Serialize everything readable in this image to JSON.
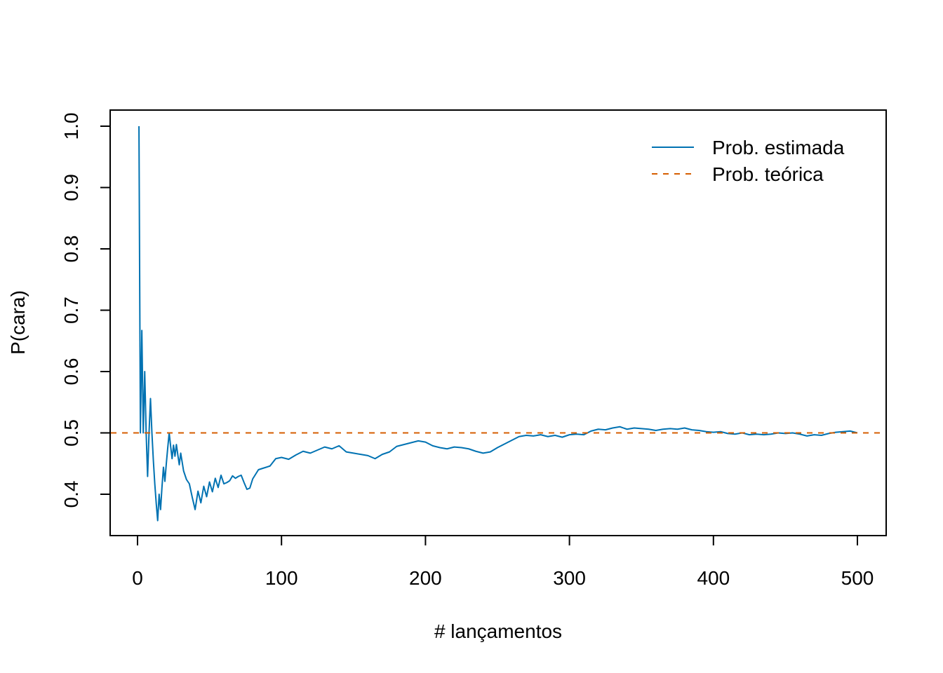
{
  "chart_data": {
    "type": "line",
    "xlabel": "# lançamentos",
    "ylabel": "P(cara)",
    "xlim": [
      0,
      500
    ],
    "ylim": [
      0.35,
      1.0
    ],
    "xticks": [
      "0",
      "100",
      "200",
      "300",
      "400",
      "500"
    ],
    "yticks": [
      "0.4",
      "0.5",
      "0.6",
      "0.7",
      "0.8",
      "0.9",
      "1.0"
    ],
    "legend_position": "top-right",
    "series": [
      {
        "name": "Prob. estimada",
        "color": "#0072B2",
        "style": "solid",
        "x": [
          1,
          2,
          3,
          4,
          5,
          6,
          7,
          8,
          9,
          10,
          11,
          12,
          13,
          14,
          15,
          16,
          17,
          18,
          19,
          20,
          21,
          22,
          23,
          24,
          25,
          26,
          27,
          28,
          29,
          30,
          32,
          34,
          36,
          38,
          40,
          42,
          44,
          46,
          48,
          50,
          52,
          54,
          56,
          58,
          60,
          62,
          64,
          66,
          68,
          70,
          72,
          74,
          76,
          78,
          80,
          84,
          88,
          92,
          96,
          100,
          105,
          110,
          115,
          120,
          125,
          130,
          135,
          140,
          145,
          150,
          155,
          160,
          165,
          170,
          175,
          180,
          185,
          190,
          195,
          200,
          205,
          210,
          215,
          220,
          225,
          230,
          235,
          240,
          245,
          250,
          255,
          260,
          265,
          270,
          275,
          280,
          285,
          290,
          295,
          300,
          305,
          310,
          315,
          320,
          325,
          330,
          335,
          340,
          345,
          350,
          355,
          360,
          365,
          370,
          375,
          380,
          385,
          390,
          395,
          400,
          405,
          410,
          415,
          420,
          425,
          430,
          435,
          440,
          445,
          450,
          455,
          460,
          465,
          470,
          475,
          480,
          485,
          490,
          495,
          500
        ],
        "y": [
          1.0,
          0.5,
          0.667,
          0.5,
          0.6,
          0.5,
          0.429,
          0.5,
          0.556,
          0.5,
          0.455,
          0.417,
          0.385,
          0.357,
          0.4,
          0.375,
          0.412,
          0.444,
          0.421,
          0.45,
          0.476,
          0.5,
          0.478,
          0.458,
          0.48,
          0.462,
          0.481,
          0.464,
          0.448,
          0.467,
          0.438,
          0.424,
          0.417,
          0.395,
          0.375,
          0.405,
          0.386,
          0.413,
          0.396,
          0.42,
          0.404,
          0.426,
          0.411,
          0.431,
          0.417,
          0.419,
          0.422,
          0.43,
          0.426,
          0.429,
          0.431,
          0.419,
          0.408,
          0.41,
          0.425,
          0.44,
          0.443,
          0.446,
          0.458,
          0.46,
          0.457,
          0.464,
          0.47,
          0.467,
          0.472,
          0.477,
          0.474,
          0.479,
          0.469,
          0.467,
          0.465,
          0.463,
          0.458,
          0.465,
          0.469,
          0.478,
          0.481,
          0.484,
          0.487,
          0.485,
          0.479,
          0.476,
          0.474,
          0.477,
          0.476,
          0.474,
          0.47,
          0.467,
          0.469,
          0.476,
          0.482,
          0.488,
          0.494,
          0.496,
          0.495,
          0.497,
          0.494,
          0.496,
          0.493,
          0.497,
          0.498,
          0.497,
          0.503,
          0.506,
          0.505,
          0.508,
          0.51,
          0.506,
          0.508,
          0.507,
          0.506,
          0.504,
          0.506,
          0.507,
          0.506,
          0.508,
          0.505,
          0.504,
          0.502,
          0.501,
          0.502,
          0.499,
          0.498,
          0.5,
          0.497,
          0.498,
          0.497,
          0.498,
          0.5,
          0.499,
          0.5,
          0.498,
          0.495,
          0.497,
          0.496,
          0.499,
          0.501,
          0.502,
          0.503,
          0.5
        ]
      },
      {
        "name": "Prob. teórica",
        "color": "#D55E00",
        "style": "dashed",
        "hline": 0.5
      }
    ]
  }
}
